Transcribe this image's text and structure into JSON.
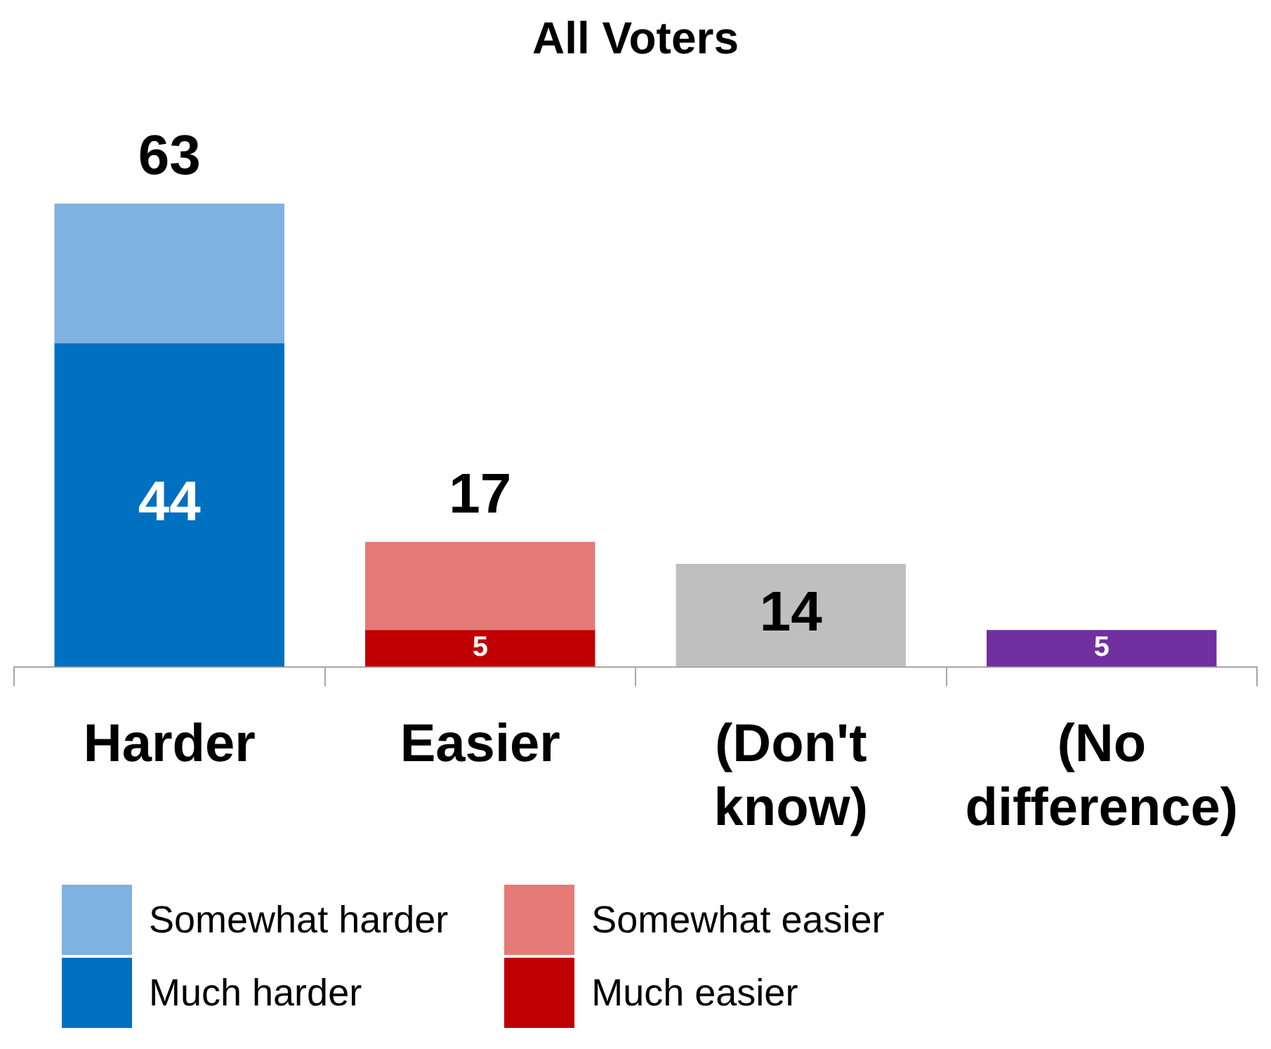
{
  "chart_data": {
    "type": "bar",
    "title": "All Voters",
    "stacked": true,
    "categories": [
      "Harder",
      "Easier",
      "(Don't know)",
      "(No difference)"
    ],
    "series": [
      {
        "name": "Much harder",
        "color": "#0070c0",
        "values": [
          44,
          null,
          null,
          null
        ],
        "value_labels": [
          "44",
          null,
          null,
          null
        ]
      },
      {
        "name": "Somewhat harder",
        "color": "#7fb2e0",
        "values": [
          19,
          null,
          null,
          null
        ],
        "value_labels": [
          null,
          null,
          null,
          null
        ]
      },
      {
        "name": "Much easier",
        "color": "#c00000",
        "values": [
          null,
          5,
          null,
          null
        ],
        "value_labels": [
          null,
          "5",
          null,
          null
        ]
      },
      {
        "name": "Somewhat easier",
        "color": "#e57a77",
        "values": [
          null,
          12,
          null,
          null
        ],
        "value_labels": [
          null,
          null,
          null,
          null
        ]
      },
      {
        "color": "#bfbfbf",
        "values": [
          null,
          null,
          14,
          null
        ],
        "value_labels": [
          null,
          null,
          "14",
          null
        ]
      },
      {
        "color": "#7030a0",
        "values": [
          null,
          null,
          null,
          5
        ],
        "value_labels": [
          null,
          null,
          null,
          "5"
        ]
      }
    ],
    "totals": [
      "63",
      "17",
      null,
      null
    ],
    "tick_labels": "x",
    "grid": false,
    "legend": "bottom"
  }
}
